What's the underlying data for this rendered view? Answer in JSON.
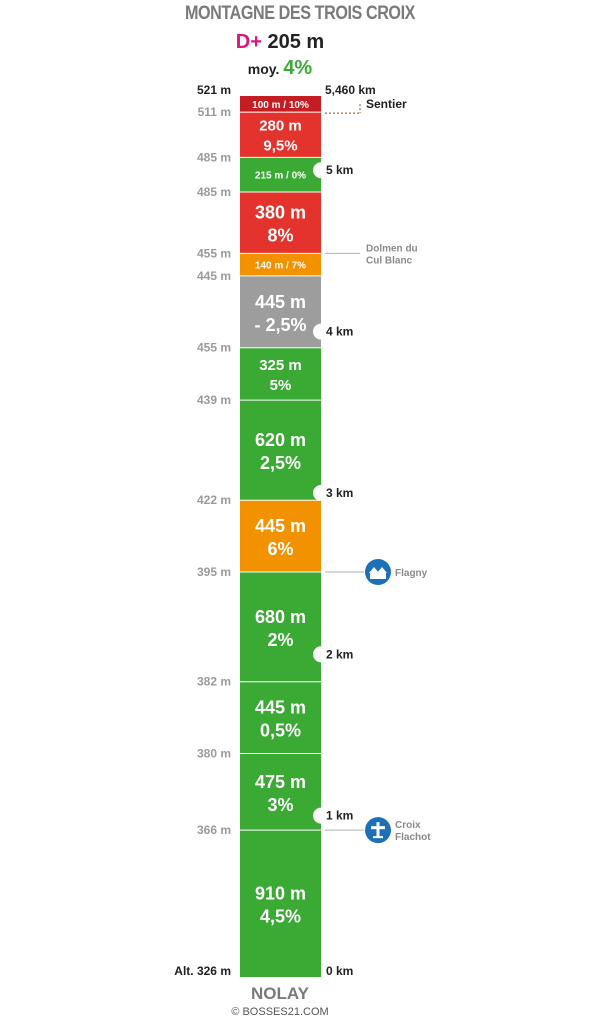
{
  "header": {
    "title": "MONTAGNE DES TROIS CROIX",
    "dplus_label": "D+",
    "dplus_value": "205 m",
    "avg_label": "moy.",
    "avg_value": "4%"
  },
  "footer": {
    "start_name": "NOLAY",
    "credit": "© BOSSES21.COM"
  },
  "colors": {
    "green": "#3aaa35",
    "red": "#e4332d",
    "darkred": "#c41e24",
    "orange": "#f39200",
    "grey": "#9d9d9d",
    "poi_blue": "#1d70b7"
  },
  "chart_data": {
    "type": "bar",
    "orientation": "vertical-stacked-profile",
    "total_distance_km": 5.46,
    "total_distance_label": "5,460 km",
    "start_altitude_label": "Alt. 326 m",
    "top_altitude_label": "521 m",
    "segments": [
      {
        "length_m": 910,
        "grade": 4.5,
        "line1": "910 m",
        "line2": "4,5%",
        "color": "green"
      },
      {
        "length_m": 475,
        "grade": 3,
        "line1": "475 m",
        "line2": "3%",
        "color": "green"
      },
      {
        "length_m": 445,
        "grade": 0.5,
        "line1": "445 m",
        "line2": "0,5%",
        "color": "green"
      },
      {
        "length_m": 680,
        "grade": 2,
        "line1": "680 m",
        "line2": "2%",
        "color": "green"
      },
      {
        "length_m": 445,
        "grade": 6,
        "line1": "445 m",
        "line2": "6%",
        "color": "orange"
      },
      {
        "length_m": 620,
        "grade": 2.5,
        "line1": "620 m",
        "line2": "2,5%",
        "color": "green"
      },
      {
        "length_m": 325,
        "grade": 5,
        "line1": "325 m",
        "line2": "5%",
        "color": "green"
      },
      {
        "length_m": 445,
        "grade": -2.5,
        "line1": "445 m",
        "line2": "- 2,5%",
        "color": "grey"
      },
      {
        "length_m": 140,
        "grade": 7,
        "line1": "140 m / 7%",
        "line2": "",
        "color": "orange"
      },
      {
        "length_m": 380,
        "grade": 8,
        "line1": "380 m",
        "line2": "8%",
        "color": "red"
      },
      {
        "length_m": 215,
        "grade": 0,
        "line1": "215 m / 0%",
        "line2": "",
        "color": "green"
      },
      {
        "length_m": 280,
        "grade": 9.5,
        "line1": "280 m",
        "line2": "9,5%",
        "color": "red"
      },
      {
        "length_m": 100,
        "grade": 10,
        "line1": "100 m / 10%",
        "line2": "",
        "color": "darkred"
      }
    ],
    "altitude_labels": [
      {
        "km": 0.91,
        "label": "366 m"
      },
      {
        "km": 1.385,
        "label": "380 m"
      },
      {
        "km": 1.83,
        "label": "382 m"
      },
      {
        "km": 2.51,
        "label": "395 m"
      },
      {
        "km": 2.955,
        "label": "422 m"
      },
      {
        "km": 3.575,
        "label": "439 m"
      },
      {
        "km": 3.9,
        "label": "455 m"
      },
      {
        "km": 4.345,
        "label": "445 m"
      },
      {
        "km": 4.485,
        "label": "455 m"
      },
      {
        "km": 4.865,
        "label": "485 m"
      },
      {
        "km": 5.08,
        "label": "485 m"
      },
      {
        "km": 5.36,
        "label": "511 m"
      }
    ],
    "km_markers": [
      {
        "km": 0,
        "label": "0 km"
      },
      {
        "km": 1,
        "label": "1 km"
      },
      {
        "km": 2,
        "label": "2 km"
      },
      {
        "km": 3,
        "label": "3 km"
      },
      {
        "km": 4,
        "label": "4 km"
      },
      {
        "km": 5,
        "label": "5 km"
      }
    ],
    "points_of_interest": [
      {
        "km": 0.91,
        "line1": "Croix",
        "line2": "Flachot",
        "icon": "cross-icon"
      },
      {
        "km": 2.51,
        "line1": "Flagny",
        "line2": "",
        "icon": "village-icon"
      },
      {
        "km": 4.485,
        "line1": "Dolmen du",
        "line2": "Cul Blanc",
        "icon": ""
      },
      {
        "km": 5.36,
        "line1": "Sentier",
        "line2": "",
        "icon": "",
        "style": "trail"
      }
    ]
  }
}
